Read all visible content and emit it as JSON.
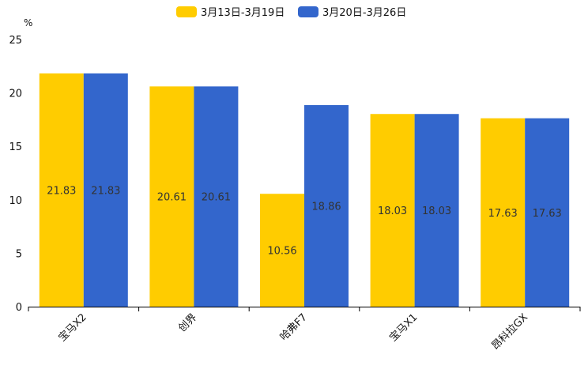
{
  "chart_data": {
    "type": "bar",
    "title": "",
    "xlabel": "",
    "ylabel": "%",
    "ylim": [
      0,
      25
    ],
    "yticks": [
      0,
      5,
      10,
      15,
      20,
      25
    ],
    "legend_position": "top-center",
    "grid": false,
    "categories": [
      "宝马X2",
      "创界",
      "哈弗F7",
      "宝马X1",
      "昂科拉GX"
    ],
    "series": [
      {
        "name": "3月13日-3月19日",
        "color": "#FFCC00",
        "values": [
          21.83,
          20.61,
          10.56,
          18.03,
          17.63
        ]
      },
      {
        "name": "3月20日-3月26日",
        "color": "#3366CC",
        "values": [
          21.83,
          20.61,
          18.86,
          18.03,
          17.63
        ]
      }
    ]
  }
}
